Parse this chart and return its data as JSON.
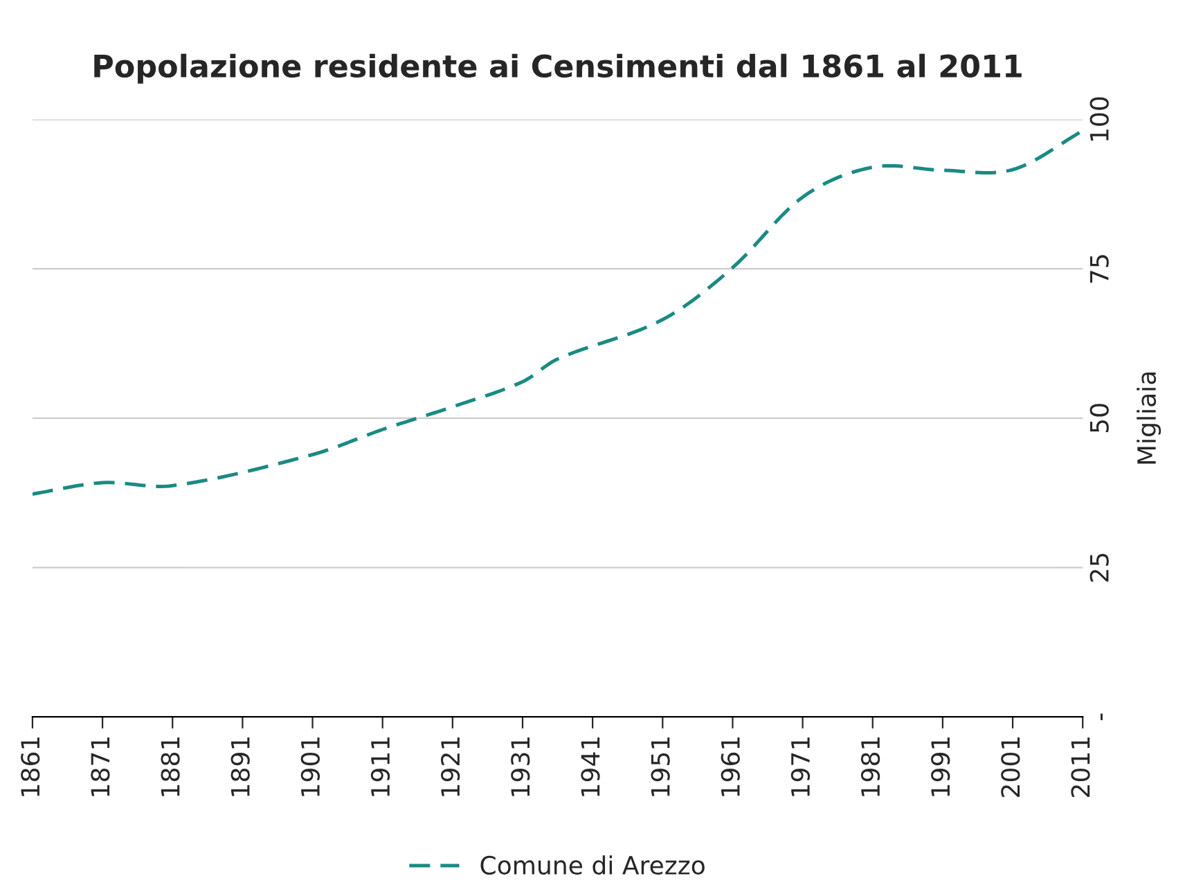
{
  "chart_data": {
    "type": "line",
    "title": "Popolazione residente ai Censimenti dal 1861 al 2011",
    "ylabel": "Migliaia",
    "x": [
      1861,
      1871,
      1881,
      1901,
      1911,
      1921,
      1931,
      1936,
      1951,
      1961,
      1971,
      1981,
      1991,
      2001,
      2011
    ],
    "series": [
      {
        "name": "Comune di Arezzo",
        "color": "#1a8a84",
        "values": [
          37.3,
          39.2,
          38.7,
          43.9,
          48.1,
          51.9,
          56.1,
          59.9,
          66.5,
          75.2,
          87.0,
          92.0,
          91.5,
          91.6,
          98.1
        ]
      }
    ],
    "xlim": [
      1861,
      2011
    ],
    "xticks": [
      1861,
      1871,
      1881,
      1891,
      1901,
      1911,
      1921,
      1931,
      1941,
      1951,
      1961,
      1971,
      1981,
      1991,
      2001,
      2011
    ],
    "ylim": [
      0,
      100
    ],
    "yticks": [
      {
        "value": 0,
        "label": "-"
      },
      25,
      50,
      75,
      100
    ],
    "grid": "y",
    "legend": "bottom",
    "line_style": "dashed",
    "marker": "none"
  }
}
